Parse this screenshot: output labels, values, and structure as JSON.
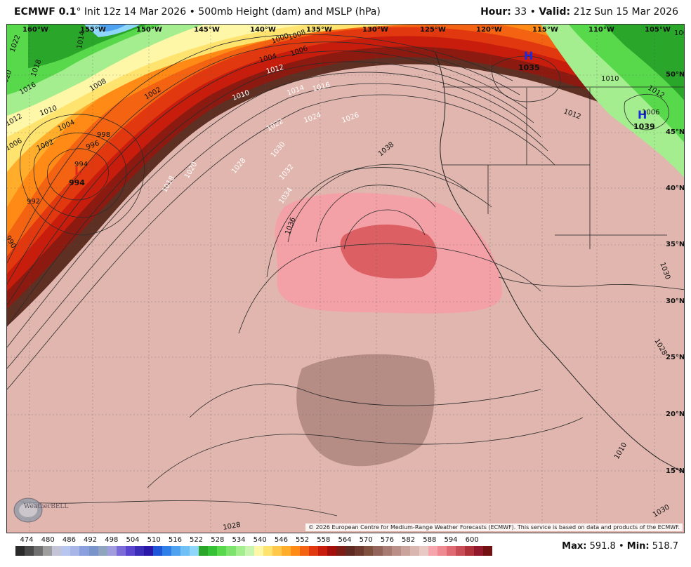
{
  "header": {
    "model": "ECMWF 0.1",
    "degree": "°",
    "init": "Init 12z 14 Mar 2026",
    "bullet": "•",
    "product": "500mb Height (dam) and MSLP (hPa)",
    "hour_label": "Hour:",
    "hour_value": "33",
    "valid_label": "Valid:",
    "valid_value": "21z Sun 15 Mar 2026"
  },
  "map": {
    "lon_labels": [
      "160°W",
      "155°W",
      "150°W",
      "145°W",
      "140°W",
      "135°W",
      "130°W",
      "125°W",
      "120°W",
      "115°W",
      "110°W",
      "105°W"
    ],
    "lat_labels": [
      "50°N",
      "45°N",
      "40°N",
      "35°N",
      "30°N",
      "25°N",
      "20°N",
      "15°N"
    ],
    "pressure_centers": [
      {
        "type": "L",
        "value": "994",
        "color": "#e0261b"
      },
      {
        "type": "H",
        "value": "1035",
        "color": "#1d2be0"
      },
      {
        "type": "H",
        "value": "1039",
        "color": "#1d2be0"
      }
    ],
    "isobar_labels": [
      "1022",
      "1018",
      "1014",
      "1020",
      "1016",
      "1008",
      "1010",
      "1012",
      "1004",
      "1006",
      "1002",
      "998",
      "996",
      "994",
      "992",
      "990",
      "1000",
      "1002",
      "1004",
      "1006",
      "1008",
      "1010",
      "1012",
      "1014",
      "1016",
      "1018",
      "1020",
      "1022",
      "1024",
      "1026",
      "1028",
      "1030",
      "1032",
      "1034",
      "1036",
      "1038",
      "1012",
      "1010",
      "1012",
      "1008",
      "1006",
      "1010",
      "1030",
      "1028",
      "1030",
      "1028"
    ],
    "copyright": "© 2026 European Centre for Medium-Range Weather Forecasts (ECMWF). This service is based on data and products of the ECMWF.",
    "watermark": "WeatherBELL"
  },
  "colorbar": {
    "labels": [
      "474",
      "480",
      "486",
      "492",
      "498",
      "504",
      "510",
      "516",
      "522",
      "528",
      "534",
      "540",
      "546",
      "552",
      "558",
      "564",
      "570",
      "576",
      "582",
      "588",
      "594",
      "600"
    ],
    "colors": [
      "#2a2a2a",
      "#4a4a4a",
      "#707070",
      "#9e9e9e",
      "#c4c4d8",
      "#b7c6ee",
      "#a7b6e7",
      "#8aa0de",
      "#7894c9",
      "#8ea4bf",
      "#a09cde",
      "#7b6bd8",
      "#5a45cf",
      "#3b2db8",
      "#2a19a8",
      "#1f56d8",
      "#2f7fe8",
      "#4fa2f0",
      "#6ec0f5",
      "#8fd6fb",
      "#2aa62a",
      "#36c236",
      "#58d84b",
      "#7ee36d",
      "#a5ee8f",
      "#c9f5b0",
      "#fff7a8",
      "#ffe36f",
      "#ffc84a",
      "#ffad2a",
      "#ff8a16",
      "#f36312",
      "#e2380f",
      "#c81d0c",
      "#a3100b",
      "#7c1d15",
      "#5e2a22",
      "#6e3a30",
      "#80503f",
      "#93645a",
      "#a77b72",
      "#b98f87",
      "#caa49c",
      "#d9b6af",
      "#e8c9c4",
      "#f7a5ac",
      "#ef8a92",
      "#e06a73",
      "#c94d57",
      "#ae3039",
      "#92192b",
      "#721012"
    ],
    "max_label": "Max:",
    "max_value": "591.8",
    "sep": "•",
    "min_label": "Min:",
    "min_value": "518.7"
  }
}
